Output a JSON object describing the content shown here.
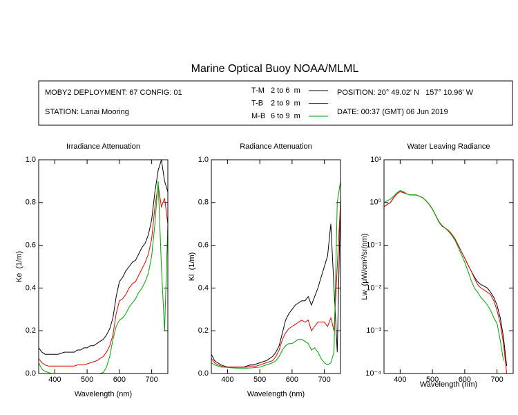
{
  "title": "Marine Optical Buoy NOAA/MLML",
  "info": {
    "deployment": "MOBY2 DEPLOYMENT: 67 CONFIG: 01",
    "station": "STATION: Lanai Mooring",
    "position": "POSITION: 20° 49.02' N   157° 10.96' W",
    "date": "DATE: 00:37 (GMT) 06 Jun 2019"
  },
  "legend": [
    {
      "name": "T-M",
      "depth": "2 to 6  m",
      "color": "#000000"
    },
    {
      "name": "T-B",
      "depth": "2 to 9  m",
      "color": "#e00000"
    },
    {
      "name": "M-B",
      "depth": "6 to 9  m",
      "color": "#00a000"
    }
  ],
  "chart_data": [
    {
      "type": "line",
      "title": "Irradiance Attenuation",
      "xlabel": "Wavelength (nm)",
      "ylabel": "Ke  (1/m)",
      "xlim": [
        350,
        750
      ],
      "xticks": [
        400,
        500,
        600,
        700
      ],
      "ylim": [
        0,
        1
      ],
      "yticks": [
        {
          "value": 0,
          "label": "0.0"
        },
        0.2,
        0.4,
        0.6,
        0.8,
        {
          "value": 1,
          "label": "1.0"
        }
      ],
      "log": false,
      "x": [
        350,
        360,
        370,
        380,
        390,
        400,
        410,
        420,
        430,
        440,
        450,
        460,
        470,
        480,
        490,
        500,
        510,
        520,
        530,
        540,
        550,
        560,
        570,
        580,
        590,
        600,
        610,
        620,
        630,
        640,
        650,
        660,
        670,
        680,
        690,
        700,
        710,
        720,
        730,
        740,
        750
      ],
      "series": [
        {
          "color": "#000000",
          "values": [
            0.12,
            0.1,
            0.09,
            0.09,
            0.09,
            0.09,
            0.09,
            0.095,
            0.1,
            0.1,
            0.1,
            0.1,
            0.11,
            0.11,
            0.12,
            0.12,
            0.13,
            0.13,
            0.14,
            0.15,
            0.16,
            0.18,
            0.21,
            0.26,
            0.36,
            0.43,
            0.45,
            0.48,
            0.5,
            0.52,
            0.53,
            0.56,
            0.59,
            0.61,
            0.65,
            0.72,
            0.85,
            0.95,
            1.0,
            0.9,
            0.85
          ]
        },
        {
          "color": "#e00000",
          "values": [
            0.07,
            0.05,
            0.04,
            0.035,
            0.035,
            0.035,
            0.035,
            0.035,
            0.035,
            0.035,
            0.035,
            0.035,
            0.04,
            0.04,
            0.04,
            0.045,
            0.05,
            0.055,
            0.06,
            0.07,
            0.08,
            0.1,
            0.13,
            0.18,
            0.28,
            0.34,
            0.35,
            0.37,
            0.4,
            0.42,
            0.43,
            0.46,
            0.49,
            0.52,
            0.56,
            0.63,
            0.78,
            0.88,
            0.78,
            0.82,
            0.7
          ]
        },
        {
          "color": "#00a000",
          "values": [
            0.05,
            0.02,
            0.01,
            0.005,
            0,
            0,
            0,
            0,
            0,
            0,
            0,
            0,
            0,
            0,
            0,
            0,
            0,
            0,
            0,
            0,
            0.005,
            0.03,
            0.08,
            0.16,
            0.22,
            0.25,
            0.26,
            0.28,
            0.31,
            0.33,
            0.35,
            0.38,
            0.4,
            0.43,
            0.47,
            0.55,
            0.7,
            0.9,
            0.5,
            0.2,
            0.7
          ]
        }
      ]
    },
    {
      "type": "line",
      "title": "Radiance Attenuation",
      "xlabel": "Wavelength (nm)",
      "ylabel": "Kl  (1/m)",
      "xlim": [
        350,
        750
      ],
      "xticks": [
        400,
        500,
        600,
        700
      ],
      "ylim": [
        0,
        1
      ],
      "yticks": [
        {
          "value": 0,
          "label": "0.0"
        },
        0.2,
        0.4,
        0.6,
        0.8,
        {
          "value": 1,
          "label": "1.0"
        }
      ],
      "log": false,
      "x": [
        350,
        360,
        370,
        380,
        390,
        400,
        410,
        420,
        430,
        440,
        450,
        460,
        470,
        480,
        490,
        500,
        510,
        520,
        530,
        540,
        550,
        560,
        570,
        580,
        590,
        600,
        610,
        620,
        630,
        640,
        650,
        660,
        670,
        680,
        690,
        700,
        710,
        720,
        730,
        740,
        750
      ],
      "series": [
        {
          "color": "#000000",
          "values": [
            0.09,
            0.06,
            0.05,
            0.04,
            0.035,
            0.03,
            0.03,
            0.03,
            0.03,
            0.03,
            0.03,
            0.035,
            0.04,
            0.04,
            0.045,
            0.05,
            0.055,
            0.06,
            0.07,
            0.08,
            0.1,
            0.13,
            0.19,
            0.25,
            0.28,
            0.3,
            0.32,
            0.33,
            0.34,
            0.34,
            0.36,
            0.32,
            0.36,
            0.4,
            0.45,
            0.5,
            0.55,
            0.7,
            0.4,
            0.1,
            0.82
          ]
        },
        {
          "color": "#e00000",
          "values": [
            0.07,
            0.05,
            0.04,
            0.035,
            0.03,
            0.03,
            0.03,
            0.03,
            0.03,
            0.03,
            0.03,
            0.03,
            0.035,
            0.035,
            0.035,
            0.04,
            0.045,
            0.05,
            0.055,
            0.06,
            0.08,
            0.11,
            0.16,
            0.19,
            0.21,
            0.22,
            0.23,
            0.24,
            0.25,
            0.24,
            0.25,
            0.2,
            0.22,
            0.24,
            0.24,
            0.24,
            0.22,
            0.26,
            0.2,
            0.5,
            0.8
          ]
        },
        {
          "color": "#00a000",
          "values": [
            0.05,
            0.04,
            0.035,
            0.03,
            0.03,
            0.028,
            0.027,
            0.026,
            0.025,
            0.025,
            0.025,
            0.025,
            0.026,
            0.027,
            0.028,
            0.03,
            0.035,
            0.04,
            0.045,
            0.05,
            0.06,
            0.08,
            0.11,
            0.13,
            0.14,
            0.14,
            0.15,
            0.16,
            0.16,
            0.15,
            0.14,
            0.11,
            0.12,
            0.1,
            0.07,
            0.05,
            0.04,
            0.05,
            0.1,
            0.8,
            0.9
          ]
        }
      ]
    },
    {
      "type": "line",
      "title": "Water Leaving Radiance",
      "xlabel": "Wavelength (nm)",
      "ylabel": "Lw  (μW/cm²/sr/nm)",
      "xlim": [
        350,
        750
      ],
      "xticks": [
        400,
        500,
        600,
        700
      ],
      "ylim": [
        0.0001,
        10
      ],
      "log": true,
      "yticks": [
        {
          "value": 10,
          "label": "10¹"
        },
        {
          "value": 1,
          "label": "10⁰"
        },
        {
          "value": 0.1,
          "label": "10⁻¹"
        },
        {
          "value": 0.01,
          "label": "10⁻²"
        },
        {
          "value": 0.001,
          "label": "10⁻³"
        },
        {
          "value": 0.0001,
          "label": "10⁻⁴"
        }
      ],
      "x": [
        350,
        360,
        370,
        380,
        390,
        400,
        410,
        420,
        430,
        440,
        450,
        460,
        470,
        480,
        490,
        500,
        510,
        520,
        530,
        540,
        550,
        560,
        570,
        580,
        590,
        600,
        610,
        620,
        630,
        640,
        650,
        660,
        670,
        680,
        690,
        700,
        710,
        720,
        730,
        740,
        750
      ],
      "series": [
        {
          "color": "#000000",
          "values": [
            0.8,
            0.9,
            1.0,
            1.3,
            1.6,
            1.8,
            1.7,
            1.6,
            1.5,
            1.5,
            1.5,
            1.4,
            1.3,
            1.1,
            0.9,
            0.7,
            0.5,
            0.35,
            0.28,
            0.25,
            0.22,
            0.18,
            0.14,
            0.1,
            0.07,
            0.05,
            0.035,
            0.025,
            0.018,
            0.014,
            0.012,
            0.011,
            0.01,
            0.008,
            0.006,
            0.004,
            0.002,
            0.0007,
            0.00015,
            null,
            null
          ]
        },
        {
          "color": "#e00000",
          "values": [
            0.8,
            0.9,
            1.0,
            1.3,
            1.6,
            1.8,
            1.7,
            1.6,
            1.5,
            1.5,
            1.5,
            1.4,
            1.3,
            1.1,
            0.9,
            0.7,
            0.5,
            0.35,
            0.28,
            0.25,
            0.22,
            0.18,
            0.14,
            0.1,
            0.07,
            0.05,
            0.035,
            0.025,
            0.017,
            0.012,
            0.01,
            0.009,
            0.008,
            0.007,
            0.005,
            0.003,
            0.0015,
            0.0005,
            0.0001,
            null,
            null
          ]
        },
        {
          "color": "#00a000",
          "values": [
            1.0,
            1.1,
            1.2,
            1.4,
            1.7,
            1.9,
            1.8,
            1.6,
            1.5,
            1.5,
            1.5,
            1.4,
            1.3,
            1.1,
            0.9,
            0.7,
            0.5,
            0.36,
            0.29,
            0.25,
            0.21,
            0.17,
            0.13,
            0.09,
            0.06,
            0.04,
            0.025,
            0.015,
            0.01,
            0.008,
            0.006,
            0.005,
            0.004,
            0.003,
            0.002,
            0.0015,
            0.0006,
            0.0002,
            null,
            null,
            null
          ]
        }
      ]
    }
  ]
}
